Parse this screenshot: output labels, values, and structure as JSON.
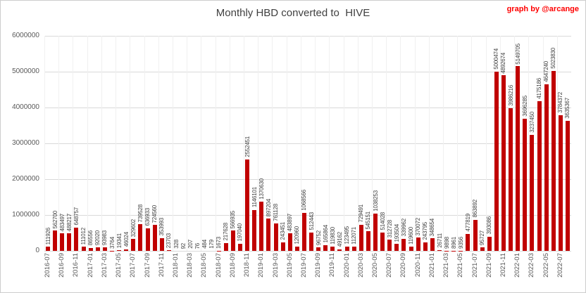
{
  "header": {
    "title": "Monthly HBD converted to  HIVE",
    "credit": "graph by @arcange"
  },
  "colors": {
    "bar": "#c00000",
    "credit_text": "#ff0000",
    "axis_text": "#595959",
    "gridline": "#d9d9d9"
  },
  "chart_data": {
    "type": "bar",
    "title": "Monthly HBD converted to  HIVE",
    "xlabel": "",
    "ylabel": "",
    "ylim": [
      0,
      6000000
    ],
    "y_ticks": [
      0,
      1000000,
      2000000,
      3000000,
      4000000,
      5000000,
      6000000
    ],
    "grid": true,
    "legend": "none",
    "x_tick_every": 2,
    "bar_color": "#c00000",
    "categories": [
      "2016-07",
      "2016-08",
      "2016-09",
      "2016-10",
      "2016-11",
      "2016-12",
      "2017-01",
      "2017-02",
      "2017-03",
      "2017-04",
      "2017-05",
      "2017-06",
      "2017-07",
      "2017-08",
      "2017-09",
      "2017-10",
      "2017-11",
      "2017-12",
      "2018-01",
      "2018-02",
      "2018-03",
      "2018-04",
      "2018-05",
      "2018-06",
      "2018-07",
      "2018-08",
      "2018-09",
      "2018-10",
      "2018-11",
      "2018-12",
      "2019-01",
      "2019-02",
      "2019-03",
      "2019-04",
      "2019-05",
      "2019-06",
      "2019-07",
      "2019-08",
      "2019-09",
      "2019-10",
      "2019-11",
      "2019-12",
      "2020-01",
      "2020-02",
      "2020-03",
      "2020-04",
      "2020-05",
      "2020-06",
      "2020-07",
      "2020-08",
      "2020-09",
      "2020-10",
      "2020-11",
      "2020-12",
      "2021-01",
      "2021-02",
      "2021-03",
      "2021-04",
      "2021-05",
      "2021-06",
      "2021-07",
      "2021-08",
      "2021-09",
      "2021-10",
      "2021-11",
      "2021-12",
      "2022-01",
      "2022-02",
      "2022-03",
      "2022-04",
      "2022-05",
      "2022-06",
      "2022-07",
      "2022-08"
    ],
    "values": [
      111926,
      562700,
      483497,
      488217,
      648757,
      111012,
      86556,
      92020,
      93983,
      3764,
      19341,
      46024,
      329602,
      739528,
      636933,
      724560,
      353993,
      23703,
      328,
      92,
      207,
      76,
      484,
      179,
      1673,
      217628,
      566935,
      197040,
      2552451,
      1146101,
      1370630,
      897204,
      761128,
      243451,
      483897,
      120960,
      1068566,
      512443,
      96752,
      165864,
      119830,
      49162,
      123495,
      112071,
      729491,
      545151,
      1038253,
      514028,
      312728,
      193504,
      339962,
      119600,
      370072,
      243795,
      348654,
      26711,
      9898,
      8961,
      9356,
      477819,
      863892,
      95727,
      393086,
      5000474,
      4892674,
      3986216,
      5149705,
      3696285,
      3237450,
      4175186,
      4647240,
      5023830,
      3784372,
      3635367
    ]
  }
}
